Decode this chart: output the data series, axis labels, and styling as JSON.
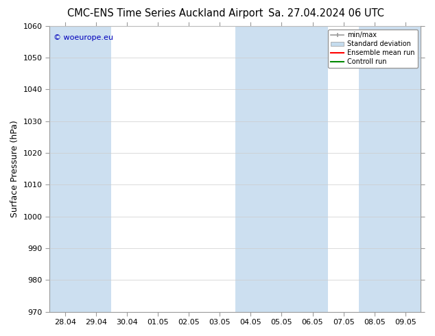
{
  "title_left": "CMC-ENS Time Series Auckland Airport",
  "title_right": "Sa. 27.04.2024 06 UTC",
  "ylabel": "Surface Pressure (hPa)",
  "ylim": [
    970,
    1060
  ],
  "yticks": [
    970,
    980,
    990,
    1000,
    1010,
    1020,
    1030,
    1040,
    1050,
    1060
  ],
  "xtick_labels": [
    "28.04",
    "29.04",
    "30.04",
    "01.05",
    "02.05",
    "03.05",
    "04.05",
    "05.05",
    "06.05",
    "07.05",
    "08.05",
    "09.05"
  ],
  "watermark": "© woeurope.eu",
  "watermark_color": "#0000bb",
  "bg_color": "#ffffff",
  "plot_bg_color": "#ffffff",
  "shaded_band_color": "#ccdff0",
  "shaded_band_alpha": 1.0,
  "shaded_x_indices": [
    0,
    1,
    6,
    7,
    8,
    10,
    11
  ],
  "legend_labels": [
    "min/max",
    "Standard deviation",
    "Ensemble mean run",
    "Controll run"
  ],
  "legend_minmax_color": "#999999",
  "legend_std_color": "#c5dcee",
  "legend_ens_color": "#ff0000",
  "legend_ctrl_color": "#008800",
  "title_fontsize": 10.5,
  "tick_fontsize": 8,
  "ylabel_fontsize": 9,
  "grid_color": "#cccccc",
  "spine_color": "#999999"
}
